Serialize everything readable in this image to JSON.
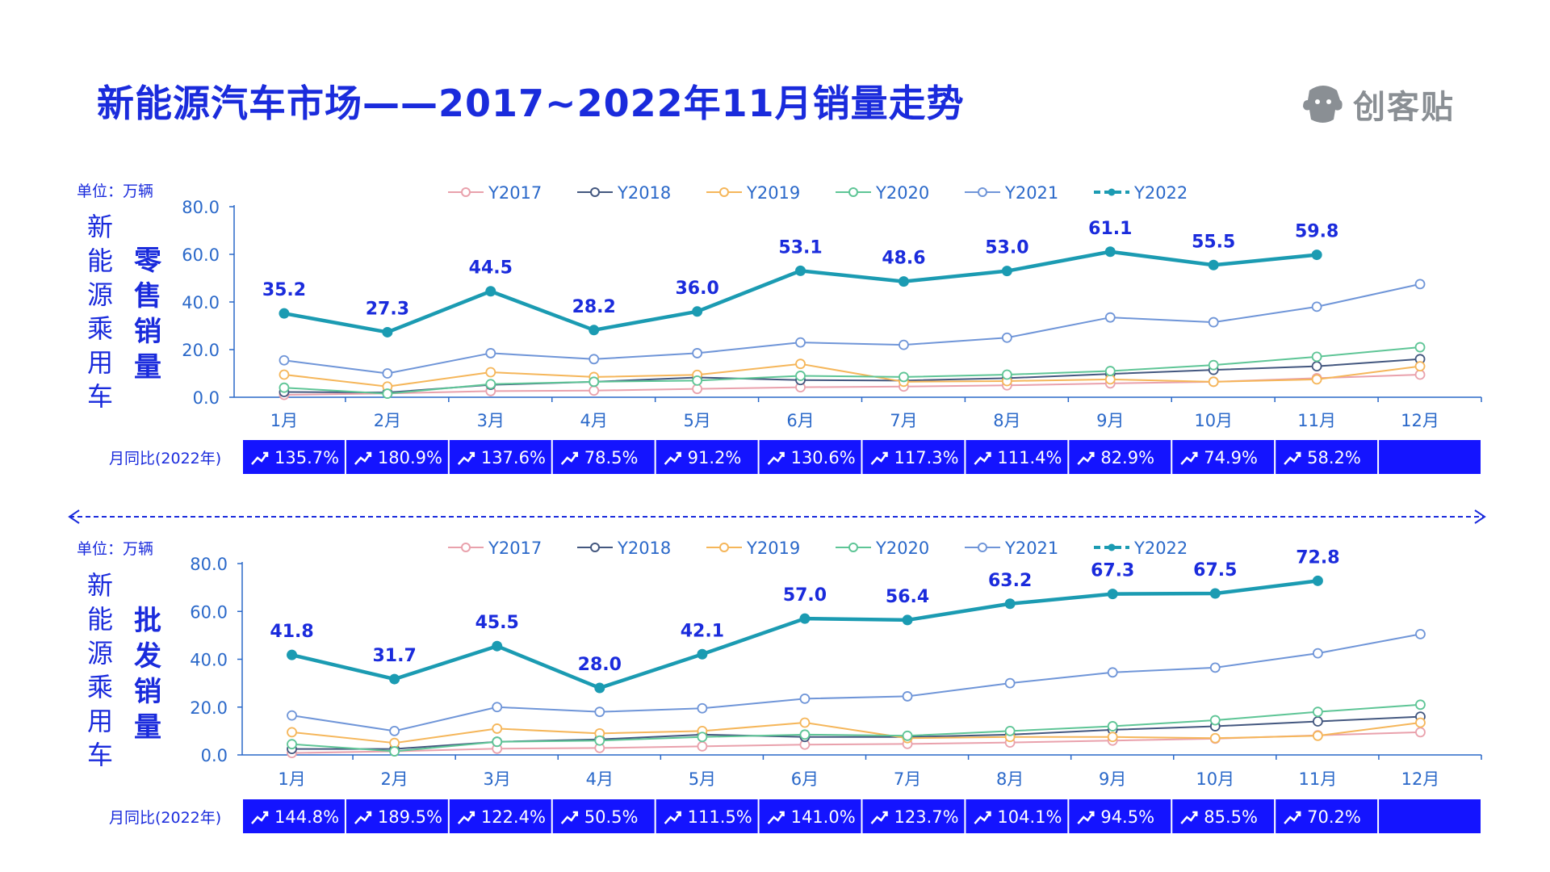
{
  "title": "新能源汽车市场——2017~2022年11月销量走势",
  "logo": {
    "text": "创客贴"
  },
  "colors": {
    "title": "#1a2bdc",
    "axis": "#2a68c9",
    "accent_bar": "#1414ff",
    "Y2017": "#e9a1ac",
    "Y2018": "#43577f",
    "Y2019": "#f5b65a",
    "Y2020": "#5ec596",
    "Y2021": "#6f95d8",
    "Y2022": "#1b9bb2"
  },
  "chart_data": [
    {
      "type": "line",
      "unit_label": "单位：万辆",
      "side_label": [
        "新",
        "能",
        "源",
        "乘",
        "用",
        "车"
      ],
      "metric_label": [
        "零",
        "售",
        "销",
        "量"
      ],
      "categories": [
        "1月",
        "2月",
        "3月",
        "4月",
        "5月",
        "6月",
        "7月",
        "8月",
        "9月",
        "10月",
        "11月",
        "12月"
      ],
      "yticks": [
        "0.0",
        "20.0",
        "40.0",
        "60.0",
        "80.0"
      ],
      "ylim": [
        0,
        80
      ],
      "legend": "top",
      "series": [
        {
          "name": "Y2017",
          "values": [
            1.0,
            1.6,
            2.6,
            2.8,
            3.5,
            4.2,
            4.5,
            5.0,
            5.8,
            6.5,
            8.0,
            9.5
          ]
        },
        {
          "name": "Y2018",
          "values": [
            2.2,
            2.0,
            5.2,
            6.5,
            8.3,
            7.2,
            7.0,
            8.0,
            9.8,
            11.5,
            13.0,
            16.0
          ]
        },
        {
          "name": "Y2019",
          "values": [
            9.5,
            4.5,
            10.5,
            8.5,
            9.4,
            14.0,
            6.5,
            6.8,
            7.5,
            6.5,
            7.5,
            13.0
          ]
        },
        {
          "name": "Y2020",
          "values": [
            4.0,
            1.5,
            5.5,
            6.5,
            7.0,
            9.0,
            8.5,
            9.5,
            11.0,
            13.5,
            17.0,
            21.0
          ]
        },
        {
          "name": "Y2021",
          "values": [
            15.5,
            10.0,
            18.5,
            16.0,
            18.5,
            23.0,
            22.0,
            25.0,
            33.5,
            31.5,
            38.0,
            47.5
          ]
        },
        {
          "name": "Y2022",
          "values": [
            35.2,
            27.3,
            44.5,
            28.2,
            36.0,
            53.1,
            48.6,
            53.0,
            61.1,
            55.5,
            59.8,
            null
          ]
        }
      ],
      "labels_2022": [
        "35.2",
        "27.3",
        "44.5",
        "28.2",
        "36.0",
        "53.1",
        "48.6",
        "53.0",
        "61.1",
        "55.5",
        "59.8"
      ],
      "yoy_label": "月同比(2022年)",
      "yoy": [
        "135.7%",
        "180.9%",
        "137.6%",
        "78.5%",
        "91.2%",
        "130.6%",
        "117.3%",
        "111.4%",
        "82.9%",
        "74.9%",
        "58.2%",
        ""
      ]
    },
    {
      "type": "line",
      "unit_label": "单位：万辆",
      "side_label": [
        "新",
        "能",
        "源",
        "乘",
        "用",
        "车"
      ],
      "metric_label": [
        "批",
        "发",
        "销",
        "量"
      ],
      "categories": [
        "1月",
        "2月",
        "3月",
        "4月",
        "5月",
        "6月",
        "7月",
        "8月",
        "9月",
        "10月",
        "11月",
        "12月"
      ],
      "yticks": [
        "0.0",
        "20.0",
        "40.0",
        "60.0",
        "80.0"
      ],
      "ylim": [
        0,
        80
      ],
      "legend": "top",
      "series": [
        {
          "name": "Y2017",
          "values": [
            0.8,
            1.5,
            2.6,
            2.9,
            3.6,
            4.3,
            4.6,
            5.2,
            6.0,
            6.8,
            8.2,
            9.5
          ]
        },
        {
          "name": "Y2018",
          "values": [
            2.5,
            2.5,
            5.5,
            6.5,
            8.5,
            7.5,
            7.5,
            8.5,
            10.5,
            12.0,
            14.0,
            16.0
          ]
        },
        {
          "name": "Y2019",
          "values": [
            9.5,
            5.0,
            11.0,
            9.0,
            10.0,
            13.5,
            7.0,
            7.5,
            7.5,
            7.0,
            8.0,
            13.5
          ]
        },
        {
          "name": "Y2020",
          "values": [
            4.5,
            1.5,
            5.5,
            6.0,
            7.5,
            8.5,
            8.0,
            10.0,
            12.0,
            14.5,
            18.0,
            21.0
          ]
        },
        {
          "name": "Y2021",
          "values": [
            16.5,
            10.0,
            20.0,
            18.0,
            19.5,
            23.5,
            24.5,
            30.0,
            34.5,
            36.5,
            42.5,
            50.5
          ]
        },
        {
          "name": "Y2022",
          "values": [
            41.8,
            31.7,
            45.5,
            28.0,
            42.1,
            57.0,
            56.4,
            63.2,
            67.3,
            67.5,
            72.8,
            null
          ]
        }
      ],
      "labels_2022": [
        "41.8",
        "31.7",
        "45.5",
        "28.0",
        "42.1",
        "57.0",
        "56.4",
        "63.2",
        "67.3",
        "67.5",
        "72.8"
      ],
      "yoy_label": "月同比(2022年)",
      "yoy": [
        "144.8%",
        "189.5%",
        "122.4%",
        "50.5%",
        "111.5%",
        "141.0%",
        "123.7%",
        "104.1%",
        "94.5%",
        "85.5%",
        "70.2%",
        ""
      ]
    }
  ]
}
